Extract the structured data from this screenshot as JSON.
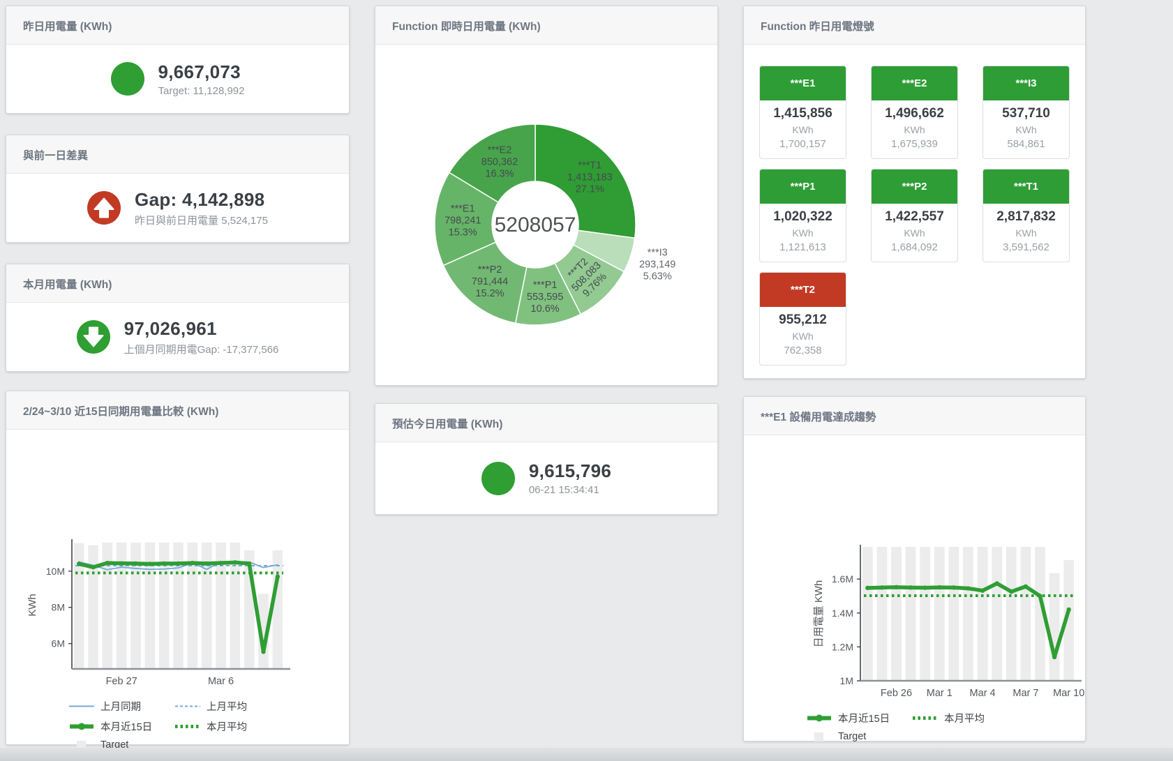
{
  "page": {
    "background": "#e9eaeb"
  },
  "cards": {
    "yesterday": {
      "title": "昨日用電量 (KWh)",
      "value": "9,667,073",
      "subtitle": "Target: 11,128,992",
      "indicator": "circle",
      "indicator_color": "#2f9e33"
    },
    "gap": {
      "title": "與前一日差異",
      "value": "Gap: 4,142,898",
      "subtitle": "昨日與前日用電量 5,524,175",
      "indicator": "arrow-up",
      "indicator_color": "#c23a24"
    },
    "month": {
      "title": "本月用電量 (KWh)",
      "value": "97,026,961",
      "subtitle": "上個月同期用電Gap: -17,377,566",
      "indicator": "arrow-down",
      "indicator_color": "#2f9e33"
    },
    "forecast": {
      "title": "預估今日用電量 (KWh)",
      "value": "9,615,796",
      "subtitle": "06-21 15:34:41",
      "indicator": "circle",
      "indicator_color": "#2f9e33"
    }
  },
  "status_board": {
    "title": "Function 昨日用電燈號",
    "tiles": [
      {
        "label": "***E1",
        "value": "1,415,856",
        "unit": "KWh",
        "target": "1,700,157",
        "color": "#2e9d35"
      },
      {
        "label": "***E2",
        "value": "1,496,662",
        "unit": "KWh",
        "target": "1,675,939",
        "color": "#2e9d35"
      },
      {
        "label": "***I3",
        "value": "537,710",
        "unit": "KWh",
        "target": "584,861",
        "color": "#2e9d35"
      },
      {
        "label": "***P1",
        "value": "1,020,322",
        "unit": "KWh",
        "target": "1,121,613",
        "color": "#2e9d35"
      },
      {
        "label": "***P2",
        "value": "1,422,557",
        "unit": "KWh",
        "target": "1,684,092",
        "color": "#2e9d35"
      },
      {
        "label": "***T1",
        "value": "2,817,832",
        "unit": "KWh",
        "target": "3,591,562",
        "color": "#2e9d35"
      },
      {
        "label": "***T2",
        "value": "955,212",
        "unit": "KWh",
        "target": "762,358",
        "color": "#c23a24"
      }
    ]
  },
  "chart_data": [
    {
      "id": "donut",
      "type": "pie",
      "title": "Function 即時日用電量 (KWh)",
      "center_total": "5208057",
      "legend_position": "none",
      "segments": [
        {
          "name": "***T1",
          "value": 1413183,
          "value_label": "1,413,183",
          "pct": "27.1%",
          "color": "#2f9c34"
        },
        {
          "name": "***I3",
          "value": 293149,
          "value_label": "293,149",
          "pct": "5.63%",
          "color": "#b9deb9",
          "label_outside": true
        },
        {
          "name": "***T2",
          "value": 508083,
          "value_label": "508,083",
          "pct": "9.76%",
          "color": "#92ca92",
          "label_rotate": -45
        },
        {
          "name": "***P1",
          "value": 553595,
          "value_label": "553,595",
          "pct": "10.6%",
          "color": "#80c180"
        },
        {
          "name": "***P2",
          "value": 791444,
          "value_label": "791,444",
          "pct": "15.2%",
          "color": "#71b972"
        },
        {
          "name": "***E1",
          "value": 798241,
          "value_label": "798,241",
          "pct": "15.3%",
          "color": "#66b468"
        },
        {
          "name": "***E2",
          "value": 850362,
          "value_label": "850,362",
          "pct": "16.3%",
          "color": "#47a44b"
        }
      ]
    },
    {
      "id": "compare",
      "type": "bar+line",
      "title": "2/24~3/10 近15日同期用電量比較 (KWh)",
      "ylabel": "KWh",
      "ylim": [
        4600000,
        11650000
      ],
      "grid": false,
      "yticks": [
        {
          "v": 6000000,
          "label": "6M"
        },
        {
          "v": 8000000,
          "label": "8M"
        },
        {
          "v": 10000000,
          "label": "10M"
        }
      ],
      "n": 15,
      "xticks": [
        {
          "i": 3,
          "label": "Feb 27"
        },
        {
          "i": 10,
          "label": "Mar 6"
        }
      ],
      "bars": {
        "name": "Target",
        "color": "#ececec",
        "values": [
          11550000,
          11430000,
          11580000,
          11580000,
          11580000,
          11580000,
          11580000,
          11580000,
          11580000,
          11580000,
          11580000,
          11580000,
          11150000,
          8750000,
          11150000
        ]
      },
      "series": [
        {
          "name": "上月同期",
          "style": "solid-thin",
          "color": "#74a9d6",
          "values": [
            10520000,
            10320000,
            10080000,
            10220000,
            10150000,
            10100000,
            10120000,
            10180000,
            10450000,
            10100000,
            10500000,
            10520000,
            10500000,
            10200000,
            10350000
          ]
        },
        {
          "name": "上月平均",
          "style": "dashed",
          "color": "#74a9d6",
          "values": 10300000
        },
        {
          "name": "本月近15日",
          "style": "solid-thick",
          "color": "#2f9e33",
          "values": [
            10400000,
            10220000,
            10450000,
            10430000,
            10420000,
            10400000,
            10420000,
            10420000,
            10450000,
            10420000,
            10450000,
            10480000,
            10420000,
            5550000,
            9700000
          ]
        },
        {
          "name": "本月平均",
          "style": "dotted",
          "color": "#2f9e33",
          "values": 9900000
        }
      ],
      "legend": [
        [
          {
            "label": "上月同期",
            "style": "solid-thin",
            "color": "#74a9d6"
          },
          {
            "label": "上月平均",
            "style": "dashed",
            "color": "#74a9d6"
          }
        ],
        [
          {
            "label": "本月近15日",
            "style": "solid-thick",
            "color": "#2f9e33"
          },
          {
            "label": "本月平均",
            "style": "dotted",
            "color": "#2f9e33"
          }
        ],
        [
          {
            "label": "Target",
            "style": "square",
            "color": "#ececec"
          }
        ]
      ]
    },
    {
      "id": "e1trend",
      "type": "bar+line",
      "title": "***E1 設備用電達成趨勢",
      "ylabel": "日用電量 KWh",
      "ylim": [
        1000000,
        1790000
      ],
      "grid": false,
      "yticks": [
        {
          "v": 1000000,
          "label": "1M"
        },
        {
          "v": 1200000,
          "label": "1.2M"
        },
        {
          "v": 1400000,
          "label": "1.4M"
        },
        {
          "v": 1600000,
          "label": "1.6M"
        }
      ],
      "n": 15,
      "xticks": [
        {
          "i": 2,
          "label": "Feb 26"
        },
        {
          "i": 5,
          "label": "Mar 1"
        },
        {
          "i": 8,
          "label": "Mar 4"
        },
        {
          "i": 11,
          "label": "Mar 7"
        },
        {
          "i": 14,
          "label": "Mar 10"
        }
      ],
      "bars": {
        "name": "Target",
        "color": "#ececec",
        "values": [
          1790000,
          1790000,
          1790000,
          1790000,
          1790000,
          1790000,
          1790000,
          1790000,
          1790000,
          1790000,
          1790000,
          1790000,
          1790000,
          1635000,
          1712000
        ]
      },
      "series": [
        {
          "name": "本月近15日",
          "style": "solid-thick",
          "color": "#2f9e33",
          "values": [
            1548000,
            1550000,
            1552000,
            1550000,
            1549000,
            1551000,
            1550000,
            1545000,
            1532000,
            1574000,
            1526000,
            1556000,
            1500000,
            1140000,
            1420000
          ]
        },
        {
          "name": "本月平均",
          "style": "dotted",
          "color": "#2f9e33",
          "values": 1502000
        }
      ],
      "legend": [
        [
          {
            "label": "本月近15日",
            "style": "solid-thick",
            "color": "#2f9e33"
          },
          {
            "label": "本月平均",
            "style": "dotted",
            "color": "#2f9e33"
          }
        ],
        [
          {
            "label": "Target",
            "style": "square",
            "color": "#ececec"
          }
        ]
      ]
    }
  ]
}
